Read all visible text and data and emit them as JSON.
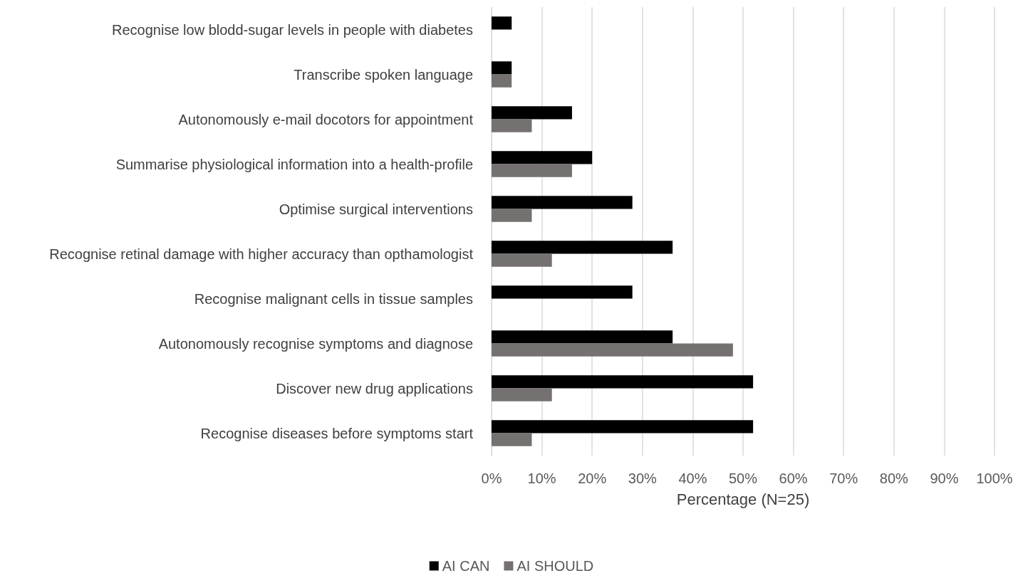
{
  "chart_data": {
    "type": "bar",
    "orientation": "horizontal",
    "xlabel": "Percentage (N=25)",
    "categories": [
      "Recognise low blodd-sugar levels in people with diabetes",
      "Transcribe spoken language",
      "Autonomously e-mail docotors for appointment",
      "Summarise physiological information into a health-profile",
      "Optimise surgical interventions",
      "Recognise retinal damage with higher accuracy than opthamologist",
      "Recognise malignant cells in tissue samples",
      "Autonomously recognise symptoms and diagnose",
      "Discover new drug applications",
      "Recognise diseases before symptoms start"
    ],
    "series": [
      {
        "name": "AI CAN",
        "color": "#000000",
        "values": [
          4,
          4,
          16,
          20,
          28,
          36,
          28,
          36,
          52,
          52
        ]
      },
      {
        "name": "AI SHOULD",
        "color": "#767171",
        "values": [
          0,
          4,
          8,
          16,
          8,
          12,
          0,
          48,
          12,
          8
        ]
      }
    ],
    "xlim": [
      0,
      100
    ],
    "xticks": [
      {
        "value": 0,
        "label": "0%"
      },
      {
        "value": 10,
        "label": "10%"
      },
      {
        "value": 20,
        "label": "20%"
      },
      {
        "value": 30,
        "label": "30%"
      },
      {
        "value": 40,
        "label": "40%"
      },
      {
        "value": 50,
        "label": "50%"
      },
      {
        "value": 60,
        "label": "60%"
      },
      {
        "value": 70,
        "label": "70%"
      },
      {
        "value": 80,
        "label": "80%"
      },
      {
        "value": 90,
        "label": "90%"
      },
      {
        "value": 100,
        "label": "100%"
      }
    ],
    "grid": "x",
    "legend": "bottom"
  }
}
